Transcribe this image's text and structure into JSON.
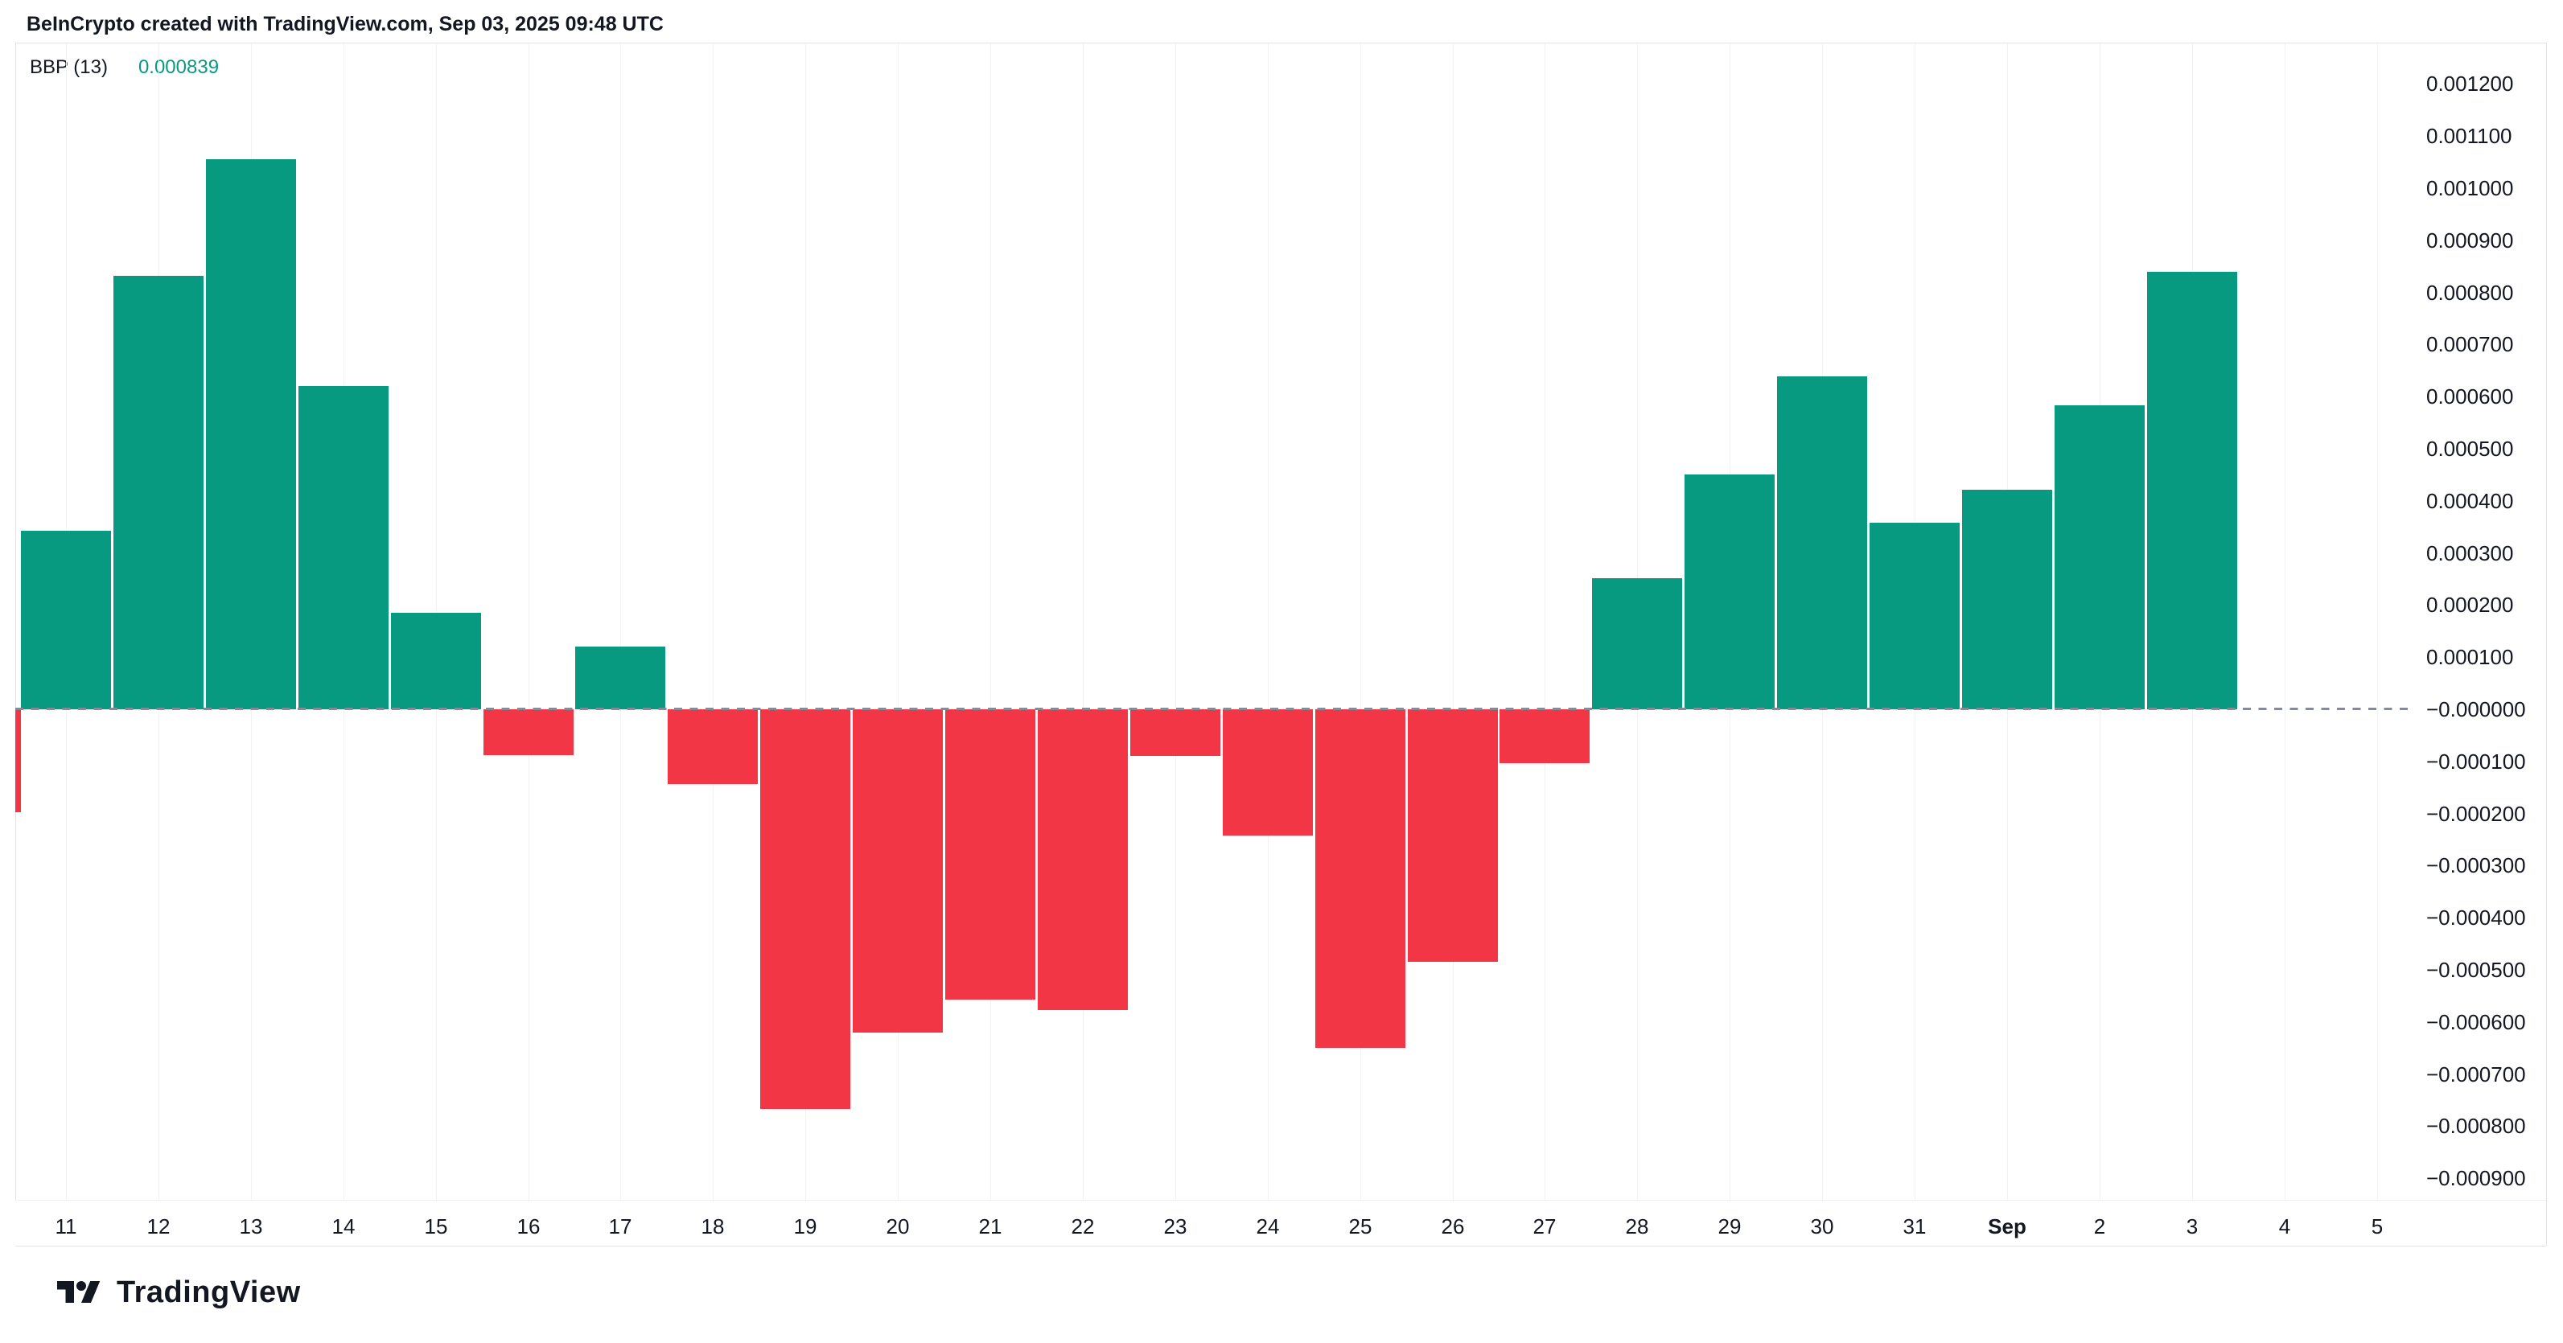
{
  "header": {
    "title": "BeInCrypto created with TradingView.com, Sep 03, 2025 09:48 UTC"
  },
  "indicator": {
    "name": "BBP (13)",
    "value": "0.000839"
  },
  "chart_data": {
    "type": "bar",
    "series_name": "BBP (13)",
    "categories": [
      "11",
      "12",
      "13",
      "14",
      "15",
      "16",
      "17",
      "18",
      "19",
      "20",
      "21",
      "22",
      "23",
      "24",
      "25",
      "26",
      "27",
      "28",
      "29",
      "30",
      "31",
      "Sep",
      "2",
      "3",
      "4",
      "5"
    ],
    "values": [
      0.000343,
      0.000832,
      0.001056,
      0.00062,
      0.000185,
      -8.8e-05,
      0.00012,
      -0.000144,
      -0.000767,
      -0.00062,
      -0.000557,
      -0.000577,
      -9e-05,
      -0.000243,
      -0.000649,
      -0.000485,
      -0.000103,
      0.000251,
      0.000451,
      0.000639,
      0.000358,
      0.000422,
      0.000583,
      0.000839,
      null,
      null
    ],
    "partial_bar_left_edge": {
      "value": -0.000198
    },
    "bold_category": "Sep",
    "last_value_label": "0.000839",
    "ylim": [
      -0.00095,
      0.00125
    ],
    "grid": "vertical-faint",
    "legend_position": "none",
    "zero_line": {
      "value": 0,
      "style": "dashed",
      "color": "#858a95"
    },
    "colors": {
      "positive": "#089981",
      "negative": "#F23645"
    },
    "y_ticks": [
      {
        "label": "0.001200",
        "value": 0.0012
      },
      {
        "label": "0.001100",
        "value": 0.0011
      },
      {
        "label": "0.001000",
        "value": 0.001
      },
      {
        "label": "0.000900",
        "value": 0.0009
      },
      {
        "label": "0.000800",
        "value": 0.0008
      },
      {
        "label": "0.000700",
        "value": 0.0007
      },
      {
        "label": "0.000600",
        "value": 0.0006
      },
      {
        "label": "0.000500",
        "value": 0.0005
      },
      {
        "label": "0.000400",
        "value": 0.0004
      },
      {
        "label": "0.000300",
        "value": 0.0003
      },
      {
        "label": "0.000200",
        "value": 0.0002
      },
      {
        "label": "0.000100",
        "value": 0.0001
      },
      {
        "label": "−0.000000",
        "value": 0.0
      },
      {
        "label": "−0.000100",
        "value": -0.0001
      },
      {
        "label": "−0.000200",
        "value": -0.0002
      },
      {
        "label": "−0.000300",
        "value": -0.0003
      },
      {
        "label": "−0.000400",
        "value": -0.0004
      },
      {
        "label": "−0.000500",
        "value": -0.0005
      },
      {
        "label": "−0.000600",
        "value": -0.0006
      },
      {
        "label": "−0.000700",
        "value": -0.0007
      },
      {
        "label": "−0.000800",
        "value": -0.0008
      },
      {
        "label": "−0.000900",
        "value": -0.0009
      }
    ]
  },
  "logo": {
    "text": "TradingView"
  }
}
